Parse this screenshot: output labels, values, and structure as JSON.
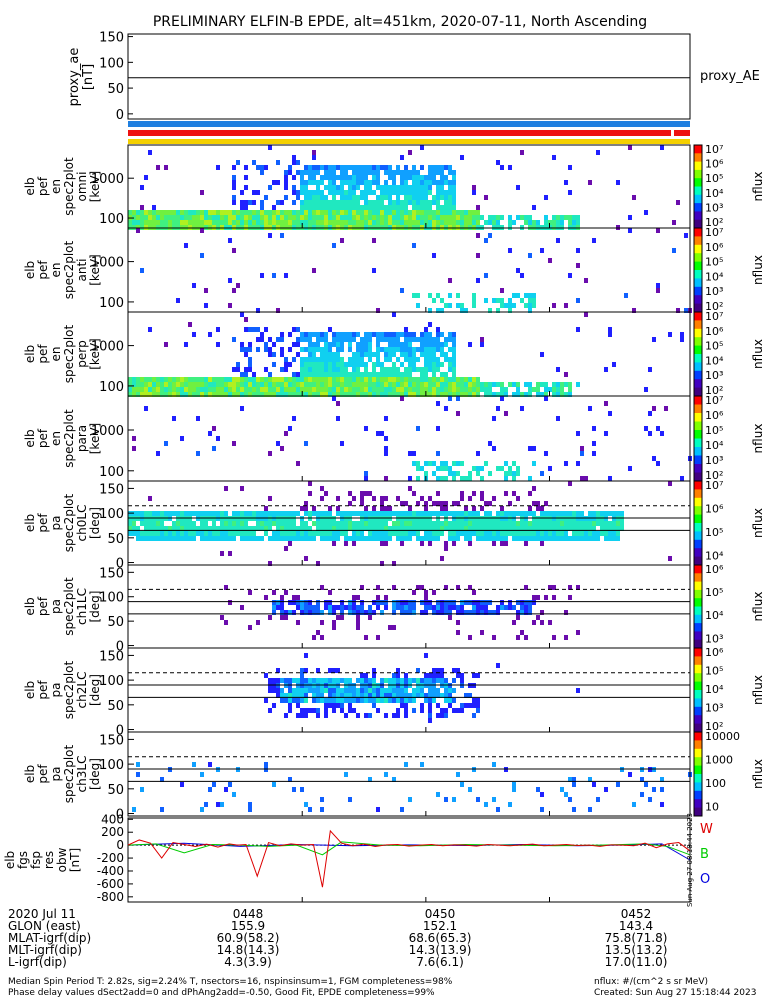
{
  "title": "PRELIMINARY ELFIN-B EPDE, alt=451km, 2020-07-11, North Ascending",
  "proxy_panel": {
    "ylabel": [
      "proxy_ae",
      "[nT]"
    ],
    "yticks": [
      "150",
      "100",
      "50",
      "0"
    ],
    "ylim": [
      -10,
      155
    ],
    "value": 70,
    "right_label": "proxy_AE"
  },
  "spec_panels": [
    {
      "ylabel": [
        "elb",
        "pef",
        "en",
        "spec2plot",
        "omni",
        "[keV]"
      ],
      "yticks": [
        "1000",
        "100"
      ]
    },
    {
      "ylabel": [
        "elb",
        "pef",
        "en",
        "spec2plot",
        "anti",
        "[keV]"
      ],
      "yticks": [
        "1000",
        "100"
      ]
    },
    {
      "ylabel": [
        "elb",
        "pef",
        "en",
        "spec2plot",
        "perp",
        "[keV]"
      ],
      "yticks": [
        "1000",
        "100"
      ]
    },
    {
      "ylabel": [
        "elb",
        "pef",
        "en",
        "spec2plot",
        "para",
        "[keV]"
      ],
      "yticks": [
        "1000",
        "100"
      ]
    }
  ],
  "pa_panels": [
    {
      "ylabel": [
        "elb",
        "pef",
        "pa",
        "spec2plot",
        "ch0LC",
        "[deg]"
      ],
      "yticks": [
        "150",
        "100",
        "50",
        "0"
      ]
    },
    {
      "ylabel": [
        "elb",
        "pef",
        "pa",
        "spec2plot",
        "ch1LC",
        "[deg]"
      ],
      "yticks": [
        "150",
        "100",
        "50",
        "0"
      ]
    },
    {
      "ylabel": [
        "elb",
        "pef",
        "pa",
        "spec2plot",
        "ch2LC",
        "[deg]"
      ],
      "yticks": [
        "150",
        "100",
        "50",
        "0"
      ]
    },
    {
      "ylabel": [
        "elb",
        "pef",
        "pa",
        "spec2plot",
        "ch3LC",
        "[deg]"
      ],
      "yticks": [
        "150",
        "100",
        "50",
        "0"
      ]
    }
  ],
  "colorbars": [
    {
      "ticks": [
        "10⁷",
        "10⁶",
        "10⁵",
        "10⁴",
        "10³",
        "10²"
      ],
      "label": "nflux"
    },
    {
      "ticks": [
        "10⁷",
        "10⁶",
        "10⁵",
        "10⁴",
        "10³",
        "10²"
      ],
      "label": "nflux"
    },
    {
      "ticks": [
        "10⁷",
        "10⁶",
        "10⁵",
        "10⁴",
        "10³",
        "10²"
      ],
      "label": "nflux"
    },
    {
      "ticks": [
        "10⁷",
        "10⁶",
        "10⁵",
        "10⁴",
        "10³",
        "10²"
      ],
      "label": "nflux"
    },
    {
      "ticks": [
        "10⁷",
        "10⁶",
        "10⁵",
        "10⁴"
      ],
      "label": "nflux"
    },
    {
      "ticks": [
        "10⁶",
        "10⁵",
        "10⁴",
        "10³"
      ],
      "label": "nflux"
    },
    {
      "ticks": [
        "10⁶",
        "10⁵",
        "10⁴",
        "10³",
        "10²"
      ],
      "label": "nflux"
    },
    {
      "ticks": [
        "10000",
        "1000",
        "100",
        "10"
      ],
      "label": "nflux"
    }
  ],
  "field_panel": {
    "ylabel": [
      "elb",
      "fgs",
      "fsp",
      "res",
      "obw",
      "[nT]"
    ],
    "yticks": [
      "400",
      "200",
      "0",
      "-200",
      "-400",
      "-600",
      "-800"
    ],
    "ylim": [
      -880,
      420
    ],
    "legend": [
      {
        "label": "W",
        "color": "#dd0000"
      },
      {
        "label": "B",
        "color": "#00cc00"
      },
      {
        "label": "O",
        "color": "#0000dd"
      }
    ],
    "stamp": "Sun Aug 27 08:18:44 2023"
  },
  "chart_data": {
    "type": "line",
    "x_ticks": [
      "0448",
      "0450",
      "0452"
    ],
    "proxy_ae_nT": 70,
    "fgs_red": {
      "t": [
        0,
        2,
        4,
        6,
        8,
        10,
        12,
        14,
        16,
        18,
        19.5,
        21,
        23,
        25,
        27,
        29,
        31,
        33,
        34.6,
        36,
        38,
        40,
        42,
        44,
        46,
        48,
        50,
        52,
        54,
        56,
        58,
        60,
        62,
        64,
        66,
        68,
        70,
        72,
        74,
        76,
        78,
        80,
        82,
        84,
        86,
        88,
        90,
        92,
        94,
        96,
        98,
        100
      ],
      "v": [
        0,
        80,
        30,
        -200,
        40,
        10,
        -20,
        15,
        -30,
        20,
        0,
        10,
        -480,
        40,
        -10,
        20,
        0,
        10,
        -650,
        220,
        30,
        -10,
        15,
        -20,
        5,
        10,
        -15,
        0,
        10,
        -10,
        5,
        0,
        -15,
        10,
        0,
        -10,
        5,
        15,
        -10,
        0,
        10,
        -5,
        0,
        -20,
        5,
        0,
        -10,
        30,
        -40,
        20,
        40,
        -90
      ]
    },
    "fgs_green": {
      "t": [
        0,
        5,
        10,
        15,
        20,
        25,
        30,
        34.6,
        38,
        45,
        52,
        60,
        68,
        76,
        84,
        92,
        96,
        100
      ],
      "v": [
        0,
        20,
        -120,
        10,
        0,
        -20,
        0,
        -150,
        50,
        0,
        -10,
        10,
        0,
        -10,
        0,
        20,
        -20,
        -150
      ]
    },
    "fgs_blue": {
      "t": [
        0,
        10,
        20,
        30,
        40,
        50,
        60,
        70,
        80,
        90,
        95,
        100
      ],
      "v": [
        0,
        30,
        -20,
        10,
        -10,
        5,
        -5,
        10,
        -10,
        5,
        20,
        -230
      ]
    },
    "footer_rows": [
      {
        "label": "2020 Jul 11",
        "values": [
          "0448",
          "0450",
          "0452"
        ]
      },
      {
        "label": "GLON (east)",
        "values": [
          "155.9",
          "152.1",
          "143.4"
        ]
      },
      {
        "label": "MLAT-igrf(dip)",
        "values": [
          "60.9(58.2)",
          "68.6(65.3)",
          "75.8(71.8)"
        ]
      },
      {
        "label": "MLT-igrf(dip)",
        "values": [
          "14.8(14.3)",
          "14.3(13.9)",
          "13.5(13.2)"
        ]
      },
      {
        "label": "L-igrf(dip)",
        "values": [
          "4.3(3.9)",
          "7.6(6.1)",
          "17.0(11.0)"
        ]
      }
    ]
  },
  "footer": {
    "note1": "Median Spin Period T: 2.82s, sig=2.24% T, nsectors=16, nspinsinsum=1, FGM completeness=98%",
    "note2": "Phase delay values dSect2add=0 and dPhAng2add=-0.50, Good Fit, EPDE completeness=99%",
    "units": "nflux: #/(cm^2 s sr MeV)",
    "created": "Created: Sun Aug 27 15:18:44 2023"
  },
  "colors": {
    "bar_blue": "#1f7fe0",
    "bar_red": "#ee1111",
    "bar_yellow": "#f4d000"
  }
}
